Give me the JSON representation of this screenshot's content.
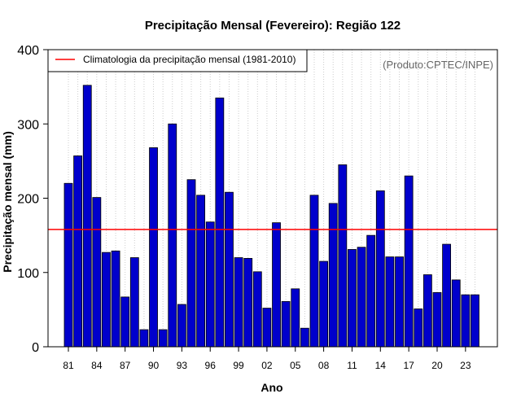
{
  "chart_data": {
    "type": "bar",
    "title": "Precipitação Mensal (Fevereiro): Região 122",
    "xlabel": "Ano",
    "ylabel": "Precipitação mensal (mm)",
    "ylim": [
      0,
      400
    ],
    "yticks": [
      0,
      100,
      200,
      300,
      400
    ],
    "credit": "(Produto:CPTEC/INPE)",
    "grid": "vertical dotted",
    "legend_position": "top-left",
    "categories": [
      "81",
      "82",
      "83",
      "84",
      "85",
      "86",
      "87",
      "88",
      "89",
      "90",
      "91",
      "92",
      "93",
      "94",
      "95",
      "96",
      "97",
      "98",
      "99",
      "00",
      "01",
      "02",
      "03",
      "04",
      "05",
      "06",
      "07",
      "08",
      "09",
      "10",
      "11",
      "12",
      "13",
      "14",
      "15",
      "16",
      "17",
      "18",
      "19",
      "20",
      "21",
      "22",
      "23",
      "24"
    ],
    "xtick_labels": [
      "81",
      "84",
      "87",
      "90",
      "93",
      "96",
      "99",
      "02",
      "05",
      "08",
      "11",
      "14",
      "17",
      "20",
      "23"
    ],
    "series": [
      {
        "name": "Precipitação mensal",
        "color": "#0000cc",
        "values": [
          220,
          257,
          352,
          201,
          127,
          129,
          67,
          120,
          23,
          268,
          23,
          300,
          57,
          225,
          204,
          168,
          335,
          208,
          120,
          119,
          101,
          52,
          167,
          61,
          78,
          25,
          204,
          115,
          193,
          245,
          131,
          134,
          150,
          210,
          121,
          121,
          230,
          51,
          97,
          73,
          138,
          90,
          70,
          70
        ]
      }
    ],
    "reference_line": {
      "label": "Climatologia da precipitação mensal (1981-2010)",
      "value": 158,
      "color": "#ff0000"
    }
  }
}
